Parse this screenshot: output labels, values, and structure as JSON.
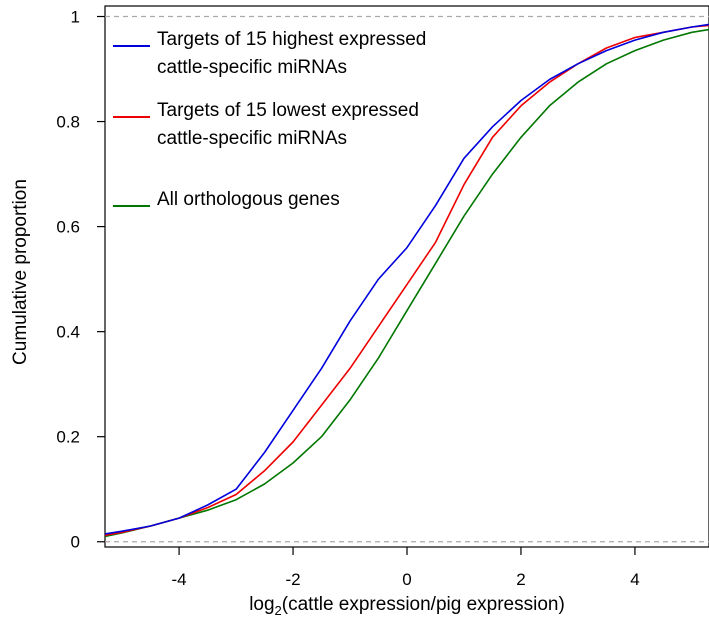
{
  "chart_data": {
    "type": "line",
    "title": "",
    "xlabel": "log",
    "xlabel_sub": "2",
    "xlabel_rest": "(cattle expression/pig expression)",
    "ylabel": "Cumulative proportion",
    "xlim": [
      -5.3,
      5.3
    ],
    "ylim": [
      -0.01,
      1.02
    ],
    "xticks": [
      -4,
      -2,
      0,
      2,
      4
    ],
    "xtick_labels": [
      "-4",
      "-2",
      "0",
      "2",
      "4"
    ],
    "yticks": [
      0,
      0.2,
      0.4,
      0.6,
      0.8,
      1
    ],
    "ytick_labels": [
      "0",
      "0.2",
      "0.4",
      "0.6",
      "0.8",
      "1"
    ],
    "reference_lines": [
      0,
      1
    ],
    "grid": false,
    "legend_position": "top-left",
    "series": [
      {
        "name": "Targets of 15 highest expressed cattle-specific miRNAs",
        "legend_lines": [
          "Targets of 15 highest expressed",
          "cattle-specific miRNAs"
        ],
        "color": "#0000dd",
        "points": [
          [
            -5.3,
            0.015
          ],
          [
            -5,
            0.02
          ],
          [
            -4.5,
            0.03
          ],
          [
            -4,
            0.045
          ],
          [
            -3.5,
            0.07
          ],
          [
            -3,
            0.1
          ],
          [
            -2.5,
            0.17
          ],
          [
            -2,
            0.25
          ],
          [
            -1.5,
            0.33
          ],
          [
            -1,
            0.42
          ],
          [
            -0.5,
            0.5
          ],
          [
            0,
            0.56
          ],
          [
            0.5,
            0.64
          ],
          [
            1,
            0.73
          ],
          [
            1.5,
            0.79
          ],
          [
            2,
            0.84
          ],
          [
            2.5,
            0.88
          ],
          [
            3,
            0.91
          ],
          [
            3.5,
            0.935
          ],
          [
            4,
            0.955
          ],
          [
            4.5,
            0.97
          ],
          [
            5,
            0.98
          ],
          [
            5.3,
            0.985
          ]
        ]
      },
      {
        "name": "Targets of 15 lowest expressed cattle-specific miRNAs",
        "legend_lines": [
          "Targets of 15 lowest expressed",
          "cattle-specific miRNAs"
        ],
        "color": "#ee0000",
        "points": [
          [
            -5.3,
            0.012
          ],
          [
            -5,
            0.018
          ],
          [
            -4.5,
            0.03
          ],
          [
            -4,
            0.045
          ],
          [
            -3.5,
            0.065
          ],
          [
            -3,
            0.09
          ],
          [
            -2.5,
            0.135
          ],
          [
            -2,
            0.19
          ],
          [
            -1.5,
            0.26
          ],
          [
            -1,
            0.33
          ],
          [
            -0.5,
            0.41
          ],
          [
            0,
            0.49
          ],
          [
            0.5,
            0.57
          ],
          [
            1,
            0.68
          ],
          [
            1.5,
            0.77
          ],
          [
            2,
            0.83
          ],
          [
            2.5,
            0.875
          ],
          [
            3,
            0.91
          ],
          [
            3.5,
            0.94
          ],
          [
            4,
            0.96
          ],
          [
            4.5,
            0.97
          ],
          [
            5,
            0.98
          ],
          [
            5.3,
            0.983
          ]
        ]
      },
      {
        "name": "All orthologous genes",
        "legend_lines": [
          "All orthologous genes"
        ],
        "color": "#007700",
        "points": [
          [
            -5.3,
            0.01
          ],
          [
            -5,
            0.017
          ],
          [
            -4.5,
            0.03
          ],
          [
            -4,
            0.045
          ],
          [
            -3.5,
            0.06
          ],
          [
            -3,
            0.08
          ],
          [
            -2.5,
            0.11
          ],
          [
            -2,
            0.15
          ],
          [
            -1.5,
            0.2
          ],
          [
            -1,
            0.27
          ],
          [
            -0.5,
            0.35
          ],
          [
            0,
            0.44
          ],
          [
            0.5,
            0.53
          ],
          [
            1,
            0.62
          ],
          [
            1.5,
            0.7
          ],
          [
            2,
            0.77
          ],
          [
            2.5,
            0.83
          ],
          [
            3,
            0.875
          ],
          [
            3.5,
            0.91
          ],
          [
            4,
            0.935
          ],
          [
            4.5,
            0.955
          ],
          [
            5,
            0.97
          ],
          [
            5.3,
            0.975
          ]
        ]
      }
    ]
  }
}
